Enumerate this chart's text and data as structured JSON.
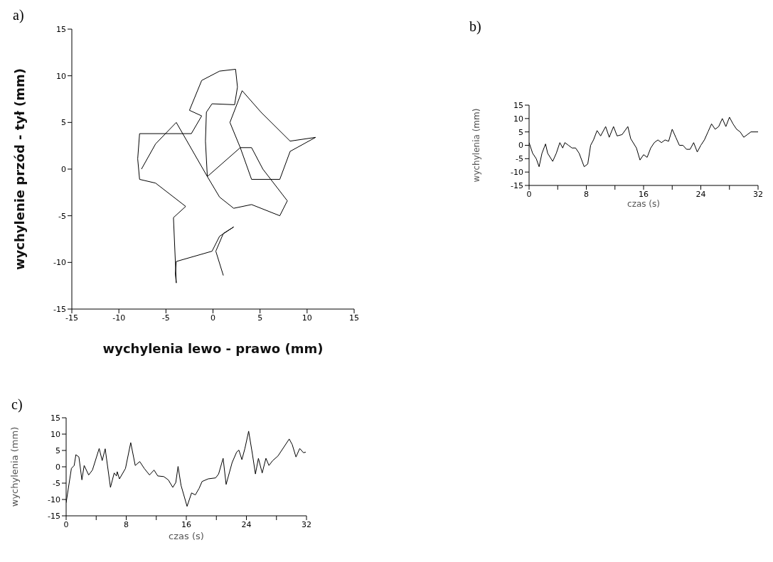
{
  "chart_data": [
    {
      "type": "line",
      "title": "a)",
      "xlabel": "wychylenia lewo - prawo (mm)",
      "ylabel": "wychylenie przód - tył (mm)",
      "xlim": [
        -15,
        15
      ],
      "ylim": [
        -15,
        15
      ],
      "xticks": [
        -15,
        -10,
        -5,
        0,
        5,
        10,
        15
      ],
      "yticks": [
        -15,
        -10,
        -5,
        0,
        5,
        10,
        15
      ],
      "series": [
        {
          "color": "#000000",
          "x": [
            1.1,
            0.3,
            1.1,
            2.2,
            0.7,
            -0.1,
            -3.9,
            -4,
            -3.9,
            -4.2,
            -2.9,
            -6.1,
            -7.8,
            -8,
            -7.8,
            -2.3,
            -1.2,
            -2.5,
            -1.2,
            0.7,
            2.4,
            2.6,
            2.3,
            -0.1,
            -0.7,
            -0.8,
            -0.6,
            0.7,
            2.2,
            4.1,
            7.1,
            7.9,
            5.3,
            4.1,
            2.9,
            1.8,
            3.1,
            5.1,
            8.2,
            10.9,
            8.2,
            7.1,
            4.1,
            2.9,
            -0.6,
            -3.9,
            -6.1,
            -7.6
          ],
          "values": [
            -11.4,
            -8.8,
            -6.9,
            -6.2,
            -7.2,
            -8.8,
            -9.9,
            -11.2,
            -12.2,
            -5.2,
            -4,
            -1.5,
            -1.1,
            1.1,
            3.8,
            3.8,
            5.7,
            6.3,
            9.5,
            10.5,
            10.7,
            8.8,
            6.9,
            7,
            6.1,
            3,
            -0.8,
            -3,
            -4.2,
            -3.8,
            -5,
            -3.4,
            0,
            2.3,
            2.3,
            5,
            8.4,
            6.1,
            3,
            3.4,
            1.9,
            -1.1,
            -1.1,
            2.3,
            -0.8,
            5,
            2.7,
            0
          ]
        }
      ]
    },
    {
      "type": "line",
      "title": "b)",
      "xlabel": "czas (s)",
      "ylabel": "wychylenia (mm)",
      "xlim": [
        0,
        32
      ],
      "ylim": [
        -15,
        15
      ],
      "xticks": [
        0,
        {
          "value": 4,
          "label": null
        },
        8,
        {
          "value": 12,
          "label": null
        },
        16,
        {
          "value": 20,
          "label": null
        },
        24,
        {
          "value": 28,
          "label": null
        },
        32
      ],
      "yticks": [
        -15,
        -10,
        -5,
        0,
        5,
        10,
        15
      ],
      "series": [
        {
          "color": "#000000",
          "x": [
            0,
            0.5,
            1,
            1.4,
            1.8,
            2.3,
            2.6,
            3.3,
            3.8,
            4.3,
            4.7,
            5,
            5.5,
            6,
            6.5,
            7,
            7.7,
            8.2,
            8.6,
            9,
            9.5,
            10,
            10.7,
            11.2,
            11.8,
            12.3,
            13,
            13.8,
            14.2,
            15,
            15.5,
            16,
            16.5,
            17,
            17.5,
            18,
            18.5,
            19,
            19.5,
            20,
            20.5,
            21,
            21.5,
            22,
            22.5,
            23,
            23.5,
            24,
            24.5,
            25,
            25.5,
            26,
            26.5,
            27,
            27.5,
            28,
            28.5,
            29,
            29.5,
            30,
            30.5,
            31,
            32
          ],
          "values": [
            1,
            -3,
            -5,
            -8,
            -3,
            0.5,
            -3,
            -6,
            -3,
            1,
            -1,
            1,
            0,
            -1,
            -1,
            -3,
            -8,
            -7,
            0,
            2,
            5.5,
            3.5,
            7,
            3,
            7,
            3.5,
            4,
            7,
            2.5,
            -1,
            -5.5,
            -3.5,
            -4.5,
            -1,
            1,
            2,
            1,
            2,
            1.5,
            6,
            3,
            0,
            0,
            -1.5,
            -1.5,
            1,
            -2.5,
            0,
            2,
            5,
            8,
            6,
            7,
            10,
            7,
            10.5,
            8,
            6,
            5,
            3,
            4,
            5,
            5
          ]
        }
      ]
    },
    {
      "type": "line",
      "title": "c)",
      "xlabel": "czas (s)",
      "ylabel": "wychylenia (mm)",
      "xlim": [
        0,
        32
      ],
      "ylim": [
        -15,
        15
      ],
      "xticks": [
        0,
        {
          "value": 4,
          "label": null
        },
        8,
        {
          "value": 12,
          "label": null
        },
        16,
        {
          "value": 20,
          "label": null
        },
        24,
        {
          "value": 28,
          "label": null
        },
        32
      ],
      "yticks": [
        -15,
        -10,
        -5,
        0,
        5,
        10,
        15
      ],
      "series": [
        {
          "color": "#000000",
          "x": [
            0,
            0.4,
            0.7,
            1.07,
            1.3,
            1.7,
            2.1,
            2.4,
            3,
            3.5,
            4.4,
            4.8,
            5.2,
            5.9,
            6.4,
            6.7,
            6.8,
            7.1,
            7.9,
            8.6,
            9.2,
            9.8,
            10.4,
            11.1,
            11.7,
            12.2,
            13,
            13.6,
            14.2,
            14.6,
            14.9,
            15.3,
            16.1,
            16.7,
            17.2,
            17.7,
            18.1,
            18.9,
            19.9,
            20.3,
            20.9,
            21.3,
            22.1,
            22.7,
            23,
            23.4,
            23.8,
            24.3,
            24.8,
            25.2,
            25.6,
            26.1,
            26.6,
            27,
            27.5,
            28.2,
            29.7,
            30.1,
            30.6,
            31.1,
            31.6,
            31.9
          ],
          "values": [
            -11,
            -5,
            -0.5,
            0.4,
            3.7,
            3,
            -4,
            0.4,
            -2.5,
            -1,
            5.6,
            1.9,
            5.5,
            -6.3,
            -1.9,
            -2.8,
            -1.5,
            -3.7,
            -0.5,
            7.4,
            0.4,
            1.6,
            -0.5,
            -2.5,
            -1,
            -2.8,
            -3,
            -4,
            -6.3,
            -4.8,
            0.1,
            -5.7,
            -12.1,
            -8,
            -8.6,
            -6.6,
            -4.5,
            -3.7,
            -3.4,
            -2.2,
            2.6,
            -5.4,
            1.3,
            4.5,
            5.1,
            2.2,
            5.6,
            10.9,
            3.9,
            -2.2,
            2.6,
            -1.9,
            2.6,
            0.4,
            1.9,
            3.3,
            8.5,
            6.8,
            3,
            5.6,
            4.3,
            4.5
          ]
        }
      ]
    }
  ]
}
